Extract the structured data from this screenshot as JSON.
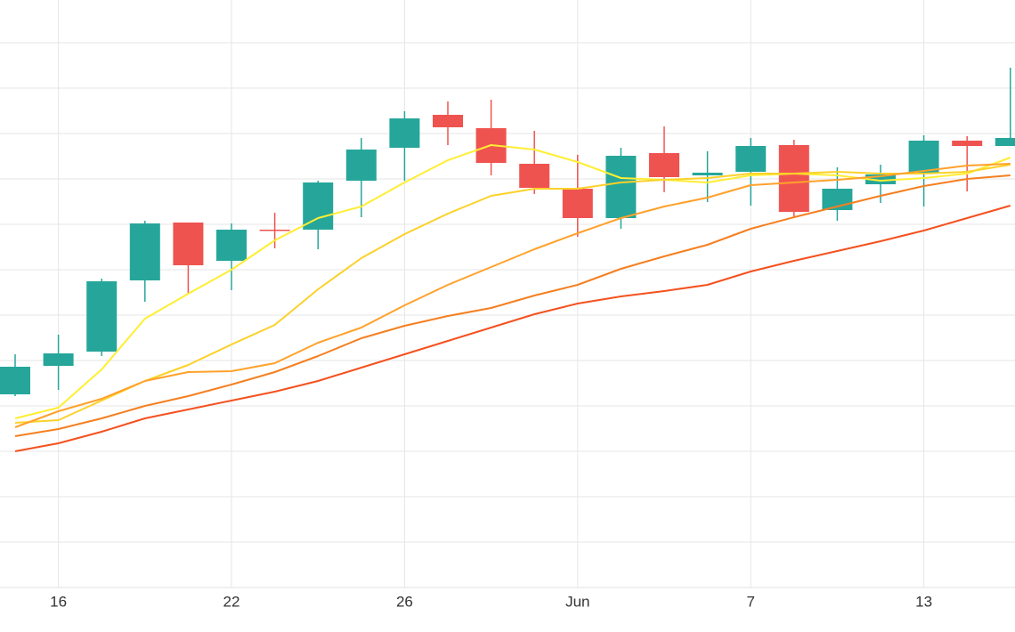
{
  "chart_data": {
    "type": "candlestick",
    "categories": [
      null,
      "16",
      null,
      null,
      null,
      "22",
      null,
      null,
      null,
      "26",
      null,
      null,
      null,
      "Jun",
      null,
      null,
      null,
      "7",
      null,
      null,
      null,
      "13",
      null,
      null
    ],
    "open": [
      217,
      249,
      265,
      345,
      410,
      367,
      402,
      402,
      457,
      494,
      531,
      516,
      476,
      448,
      415,
      488,
      463,
      467,
      497,
      424,
      453,
      466,
      502,
      496
    ],
    "high": [
      262,
      284,
      347,
      412,
      410,
      409,
      421,
      457,
      505,
      535,
      546,
      548,
      513,
      486,
      494,
      518,
      490,
      505,
      503,
      472,
      475,
      508,
      507,
      584
    ],
    "low": [
      215,
      222,
      260,
      321,
      330,
      334,
      381,
      380,
      416,
      457,
      497,
      463,
      442,
      394,
      403,
      444,
      433,
      429,
      416,
      412,
      432,
      428,
      445,
      496
    ],
    "close": [
      248,
      263,
      344,
      409,
      362,
      402,
      401,
      455,
      492,
      527,
      517,
      477,
      449,
      415,
      485,
      461,
      466,
      496,
      422,
      448,
      464,
      502,
      496,
      505
    ],
    "up_color": "#26a69a",
    "down_color": "#ef5350",
    "series": [
      {
        "color": "#ffee33",
        "values": [
          190,
          202,
          245,
          302,
          330,
          357,
          390,
          415,
          428,
          455,
          480,
          497,
          492,
          478,
          460,
          458,
          455,
          463,
          465,
          463,
          457,
          460,
          465,
          483
        ]
      },
      {
        "color": "#fcd12a",
        "values": [
          185,
          188,
          210,
          232,
          250,
          273,
          295,
          335,
          370,
          397,
          420,
          440,
          448,
          448,
          455,
          458,
          460,
          465,
          465,
          467,
          465,
          465,
          467,
          475
        ]
      },
      {
        "color": "#ffa12b",
        "values": [
          180,
          198,
          212,
          232,
          242,
          243,
          252,
          275,
          292,
          317,
          340,
          360,
          380,
          398,
          415,
          428,
          438,
          452,
          455,
          458,
          462,
          468,
          474,
          476
        ]
      },
      {
        "color": "#f57f20",
        "values": [
          170,
          178,
          190,
          204,
          215,
          228,
          242,
          260,
          280,
          294,
          305,
          314,
          328,
          340,
          358,
          372,
          385,
          403,
          416,
          428,
          440,
          451,
          459,
          463
        ]
      },
      {
        "color": "#f4511e",
        "values": [
          153,
          162,
          175,
          190,
          200,
          210,
          220,
          232,
          247,
          262,
          277,
          292,
          307,
          319,
          327,
          333,
          340,
          355,
          367,
          378,
          389,
          401,
          415,
          429
        ]
      }
    ],
    "ylim": [
      0,
      660
    ],
    "yticks": [
      51,
      102,
      153,
      204,
      255,
      306,
      357,
      408,
      459,
      510,
      561,
      612
    ],
    "grid": true
  }
}
